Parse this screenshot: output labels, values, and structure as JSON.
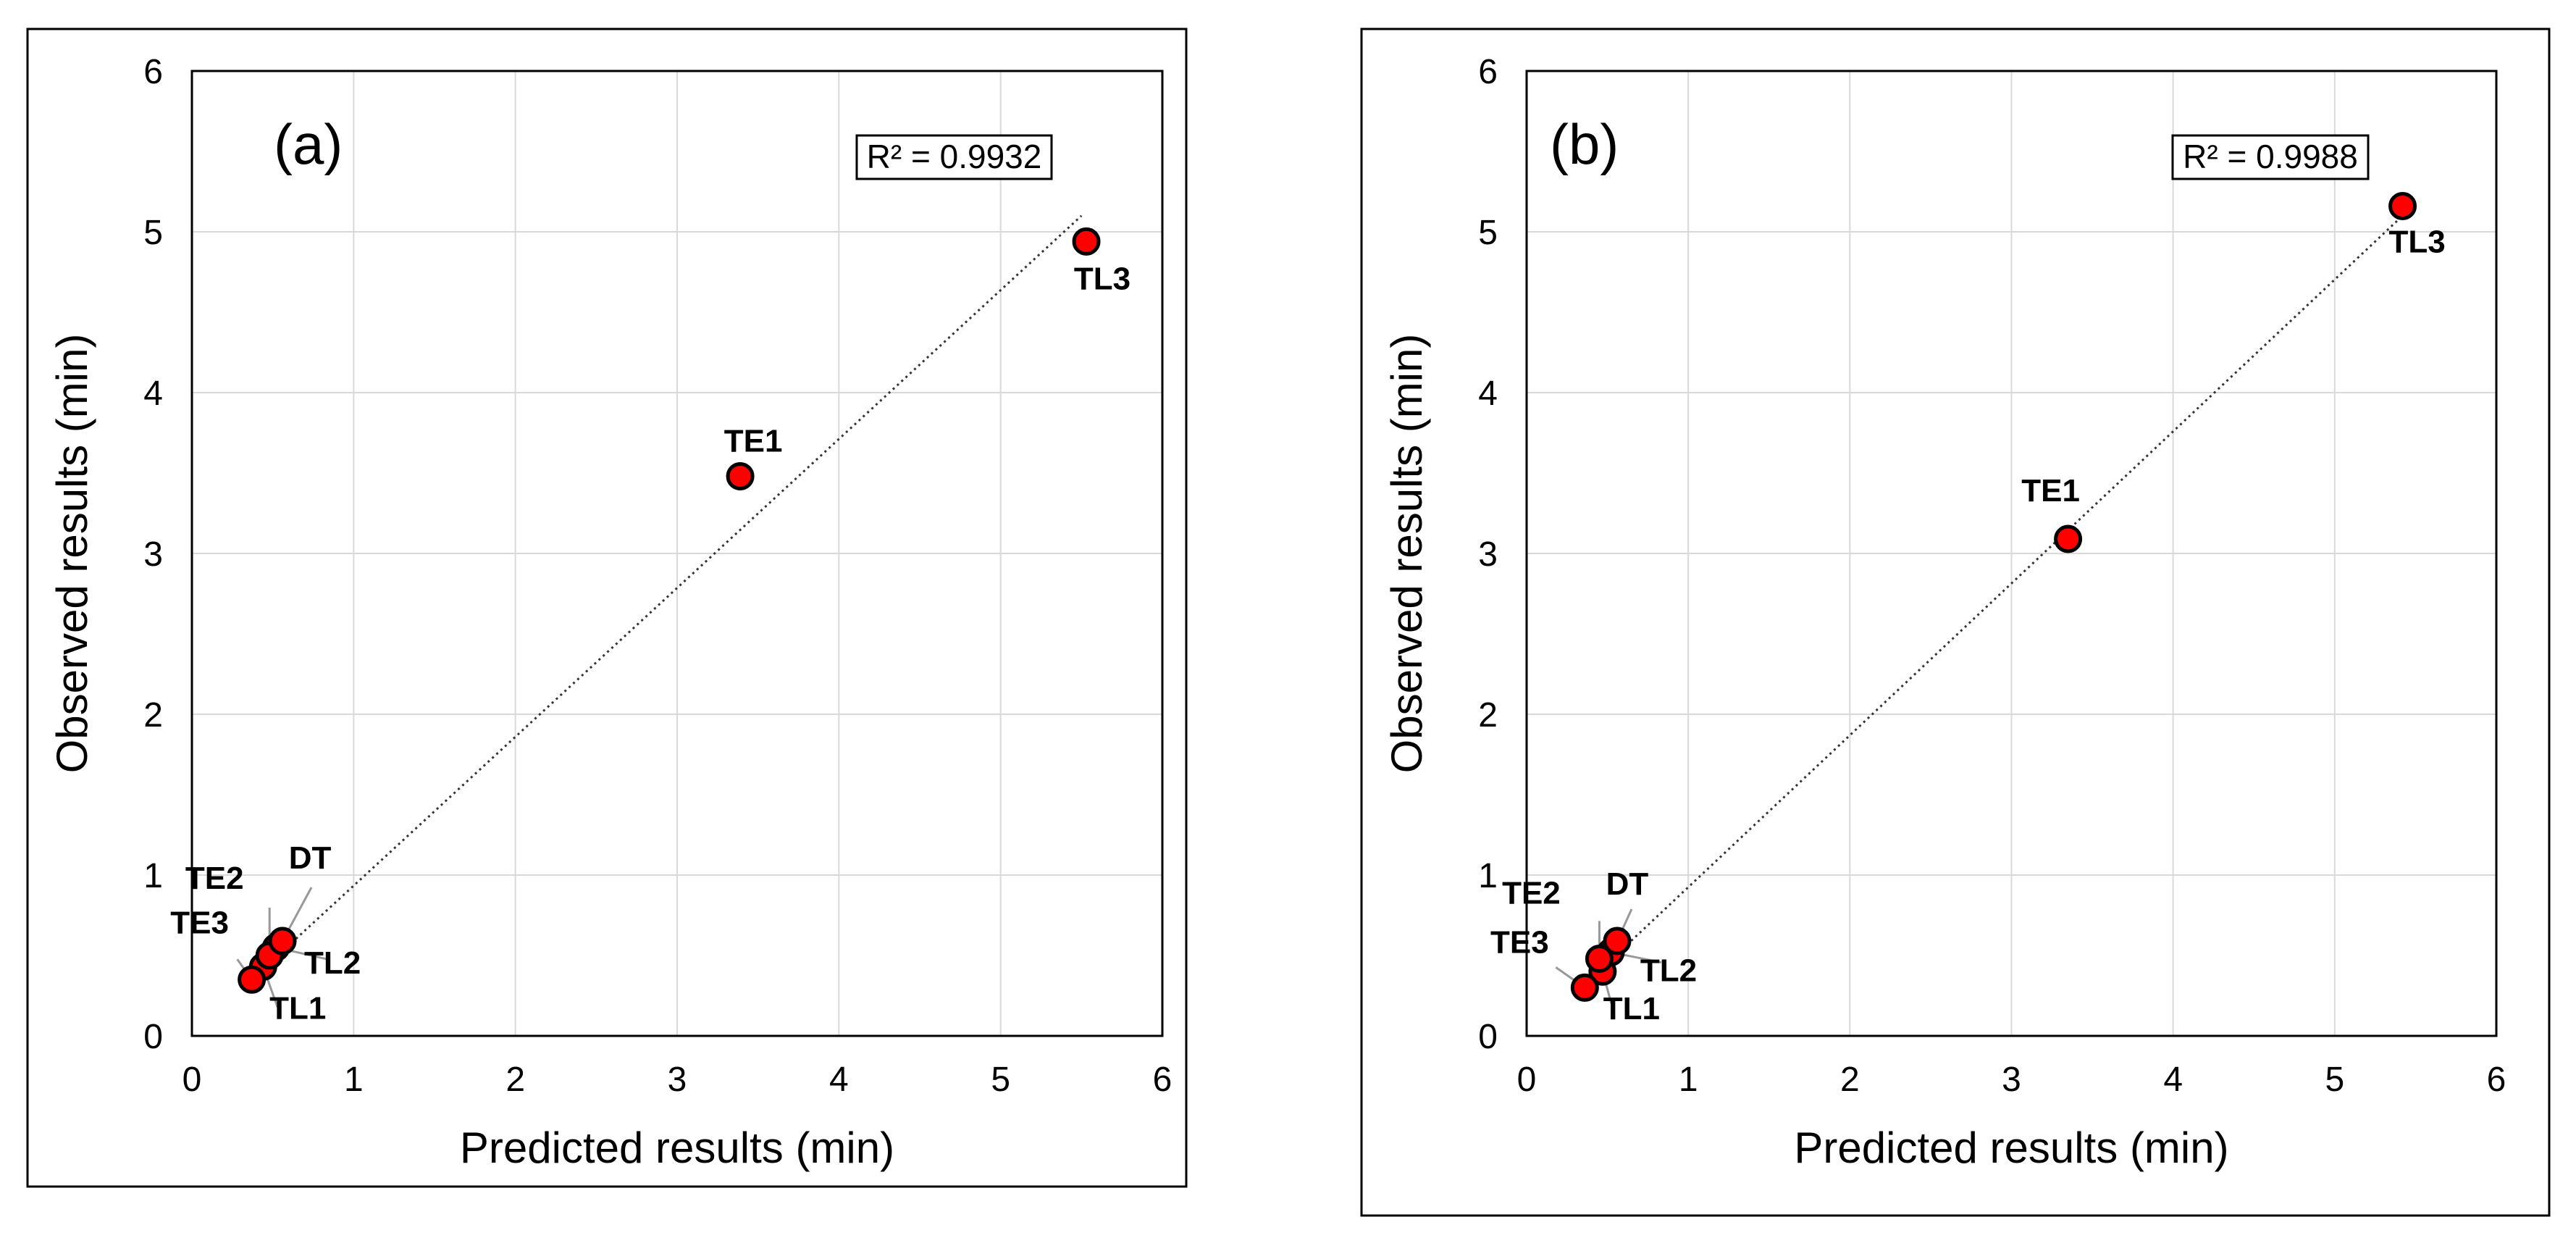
{
  "chart_data": [
    {
      "type": "scatter",
      "panel_label": "(a)",
      "xlabel": "Predicted results (min)",
      "ylabel": "Observed results (min)",
      "xlim": [
        0,
        6
      ],
      "ylim": [
        0,
        6
      ],
      "ticks": [
        "0",
        "1",
        "2",
        "3",
        "4",
        "5",
        "6"
      ],
      "grid": true,
      "r2_text": "R² = 0.9932",
      "trendline": {
        "style": "dotted",
        "from": [
          0.38,
          0.36
        ],
        "to": [
          5.5,
          5.1
        ]
      },
      "points": [
        {
          "name": "TL3",
          "x": 5.53,
          "y": 4.94
        },
        {
          "name": "TE1",
          "x": 3.39,
          "y": 3.48
        },
        {
          "name": "DT",
          "x": 0.56,
          "y": 0.59
        },
        {
          "name": "TE2",
          "x": 0.48,
          "y": 0.5
        },
        {
          "name": "TL2",
          "x": 0.52,
          "y": 0.55
        },
        {
          "name": "TE3",
          "x": 0.37,
          "y": 0.35
        },
        {
          "name": "TL1",
          "x": 0.44,
          "y": 0.43
        }
      ],
      "marker_color": "#ff0000",
      "marker_edge": "#000000"
    },
    {
      "type": "scatter",
      "panel_label": "(b)",
      "xlabel": "Predicted results (min)",
      "ylabel": "Observed results (min)",
      "xlim": [
        0,
        6
      ],
      "ylim": [
        0,
        6
      ],
      "ticks": [
        "0",
        "1",
        "2",
        "3",
        "4",
        "5",
        "6"
      ],
      "grid": true,
      "r2_text": "R² = 0.9988",
      "trendline": {
        "style": "dotted",
        "from": [
          0.36,
          0.32
        ],
        "to": [
          5.42,
          5.1
        ]
      },
      "points": [
        {
          "name": "TL3",
          "x": 5.42,
          "y": 5.16
        },
        {
          "name": "TE1",
          "x": 3.35,
          "y": 3.09
        },
        {
          "name": "DT",
          "x": 0.56,
          "y": 0.59
        },
        {
          "name": "TE2",
          "x": 0.45,
          "y": 0.48
        },
        {
          "name": "TL2",
          "x": 0.52,
          "y": 0.52
        },
        {
          "name": "TE3",
          "x": 0.36,
          "y": 0.3
        },
        {
          "name": "TL1",
          "x": 0.47,
          "y": 0.4
        }
      ],
      "marker_color": "#ff0000",
      "marker_edge": "#000000"
    }
  ]
}
